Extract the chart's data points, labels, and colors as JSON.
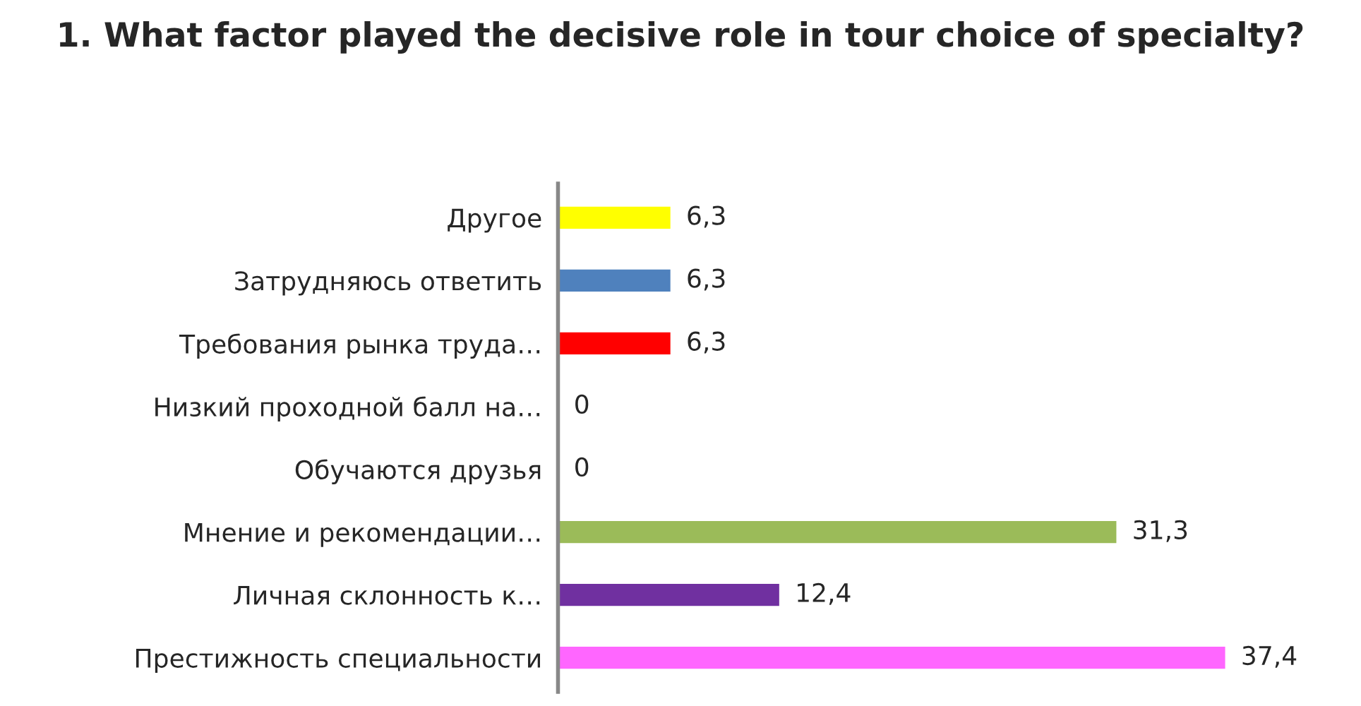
{
  "chart_data": {
    "type": "bar",
    "orientation": "horizontal",
    "title": "1. What factor played the decisive role in tour choice of specialty?",
    "categories": [
      "Другое",
      "Затрудняюсь ответить",
      "Требования рынка труда…",
      "Низкий проходной балл на…",
      "Обучаются друзья",
      "Мнение и рекомендации…",
      "Личная склонность к…",
      "Престижность специальности"
    ],
    "values": [
      6.3,
      6.3,
      6.3,
      0,
      0,
      31.3,
      12.4,
      37.4
    ],
    "value_labels": [
      "6,3",
      "6,3",
      "6,3",
      "0",
      "0",
      "31,3",
      "12,4",
      "37,4"
    ],
    "colors": [
      "#ffff00",
      "#4f81bd",
      "#ff0000",
      "#1f497d",
      "#1f497d",
      "#9bbb59",
      "#7030a0",
      "#ff66ff"
    ]
  }
}
